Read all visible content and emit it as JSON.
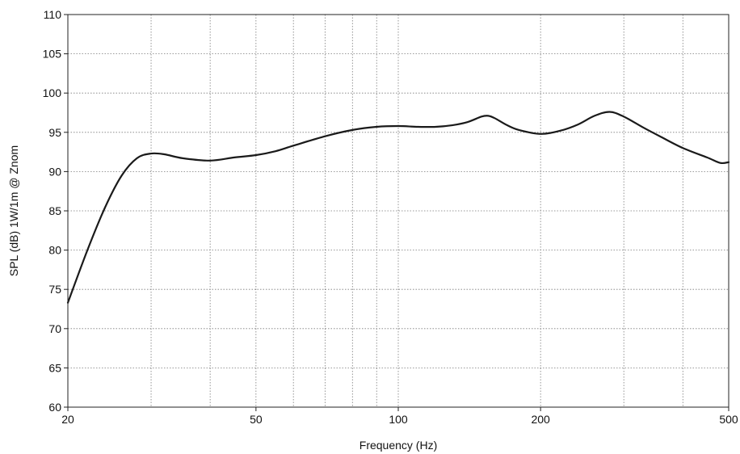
{
  "chart_data": {
    "type": "line",
    "title": "",
    "xlabel": "Frequency (Hz)",
    "ylabel": "SPL (dB) 1W/1m @ Znom",
    "x_scale": "log",
    "xlim": [
      20,
      500
    ],
    "ylim": [
      60,
      110
    ],
    "x_ticks": [
      20,
      50,
      100,
      200,
      500
    ],
    "x_tick_labels": [
      "20",
      "50",
      "100",
      "200",
      "500"
    ],
    "x_minor_gridlines": [
      30,
      40,
      60,
      70,
      80,
      90,
      300,
      400
    ],
    "y_ticks": [
      60,
      65,
      70,
      75,
      80,
      85,
      90,
      95,
      100,
      105,
      110
    ],
    "y_tick_labels": [
      "60",
      "65",
      "70",
      "75",
      "80",
      "85",
      "90",
      "95",
      "100",
      "105",
      "110"
    ],
    "grid": true,
    "legend": "none",
    "series": [
      {
        "color": "#1a1a1a",
        "x": [
          20,
          22,
          24,
          26,
          28,
          30,
          32,
          35,
          40,
          45,
          50,
          55,
          60,
          70,
          80,
          90,
          100,
          110,
          120,
          130,
          140,
          150,
          155,
          160,
          170,
          180,
          200,
          220,
          240,
          260,
          280,
          300,
          330,
          360,
          400,
          450,
          480,
          500
        ],
        "y": [
          73.3,
          80.0,
          85.5,
          89.5,
          91.7,
          92.3,
          92.2,
          91.7,
          91.4,
          91.8,
          92.1,
          92.6,
          93.3,
          94.5,
          95.3,
          95.7,
          95.8,
          95.7,
          95.7,
          95.9,
          96.3,
          97.0,
          97.1,
          96.8,
          95.9,
          95.3,
          94.8,
          95.2,
          96.0,
          97.1,
          97.6,
          97.0,
          95.6,
          94.4,
          93.0,
          91.8,
          91.1,
          91.2
        ]
      }
    ]
  }
}
